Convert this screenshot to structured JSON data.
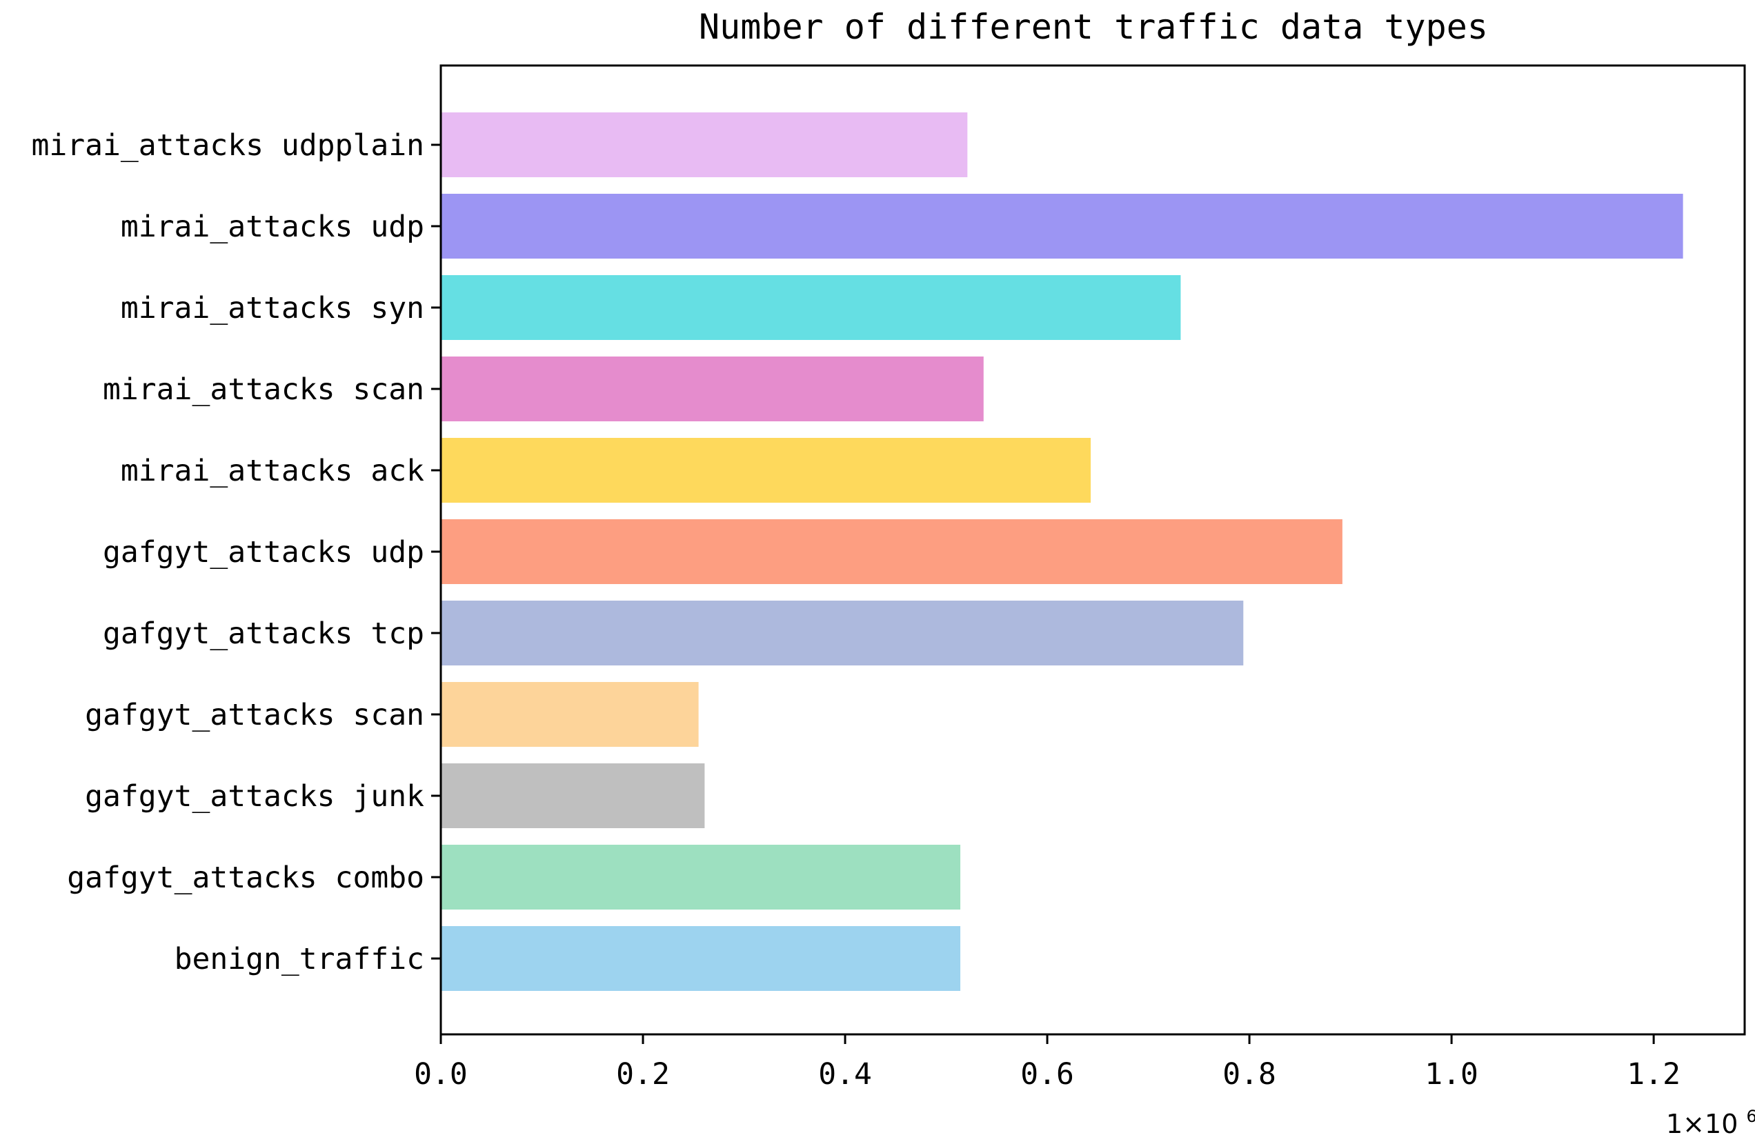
{
  "chart_data": {
    "type": "bar",
    "orientation": "horizontal",
    "title": "Number of different traffic data types",
    "xlabel": "",
    "ylabel": "",
    "x_scale_label": "1×10",
    "x_scale_exponent": "6",
    "xlim": [
      0,
      1.29
    ],
    "x_ticks": [
      0.0,
      0.2,
      0.4,
      0.6,
      0.8,
      1.0,
      1.2
    ],
    "x_tick_labels": [
      "0.0",
      "0.2",
      "0.4",
      "0.6",
      "0.8",
      "1.0",
      "1.2"
    ],
    "grid": false,
    "legend": false,
    "categories": [
      "benign_traffic",
      "gafgyt_attacks combo",
      "gafgyt_attacks junk",
      "gafgyt_attacks scan",
      "gafgyt_attacks tcp",
      "gafgyt_attacks udp",
      "mirai_attacks ack",
      "mirai_attacks scan",
      "mirai_attacks syn",
      "mirai_attacks udp",
      "mirai_attacks udpplain"
    ],
    "values": [
      0.514,
      0.514,
      0.261,
      0.255,
      0.794,
      0.892,
      0.643,
      0.537,
      0.732,
      1.229,
      0.521
    ],
    "colors": [
      "#9dd3ef",
      "#9de0c0",
      "#bfbfbf",
      "#fdd49a",
      "#adb9dd",
      "#fd9e81",
      "#fed95c",
      "#e58ccd",
      "#65dfe3",
      "#9c95f3",
      "#e8bbf3"
    ]
  }
}
